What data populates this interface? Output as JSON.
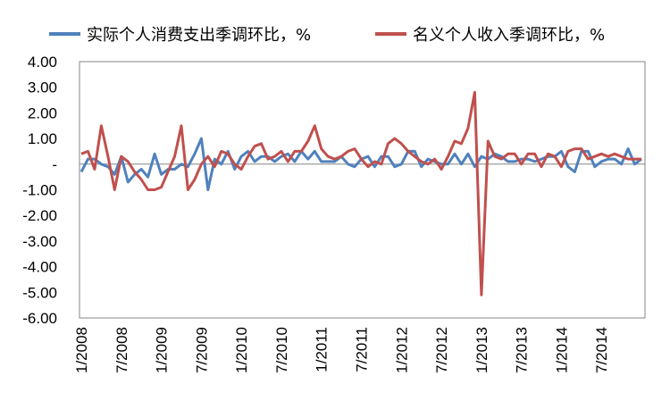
{
  "chart_data": {
    "type": "line",
    "title": "",
    "xlabel": "",
    "ylabel": "",
    "ylim": [
      -6,
      4
    ],
    "y_ticks": [
      "4.00",
      "3.00",
      "2.00",
      "1.00",
      "-",
      "-1.00",
      "-2.00",
      "-3.00",
      "-4.00",
      "-5.00",
      "-6.00"
    ],
    "y_tick_values": [
      4,
      3,
      2,
      1,
      0,
      -1,
      -2,
      -3,
      -4,
      -5,
      -6
    ],
    "x_ticks": [
      "1/2008",
      "7/2008",
      "1/2009",
      "7/2009",
      "1/2010",
      "7/2010",
      "1/2011",
      "7/2011",
      "1/2012",
      "7/2012",
      "1/2013",
      "7/2013",
      "1/2014",
      "7/2014"
    ],
    "x_start": "1/2008",
    "x_end": "9/2014",
    "grid": false,
    "legend_position": "top",
    "series": [
      {
        "name": "实际个人消费支出季调环比，%",
        "color": "#4F81BD",
        "values": [
          -0.3,
          0.2,
          0.2,
          0.0,
          -0.1,
          -0.4,
          0.3,
          -0.7,
          -0.4,
          -0.2,
          -0.5,
          0.4,
          -0.4,
          -0.2,
          -0.2,
          0.0,
          -0.1,
          0.4,
          1.0,
          -1.0,
          0.2,
          0.0,
          0.5,
          -0.2,
          0.3,
          0.5,
          0.1,
          0.3,
          0.3,
          0.1,
          0.3,
          0.4,
          0.1,
          0.5,
          0.2,
          0.5,
          0.1,
          0.1,
          0.1,
          0.3,
          0.0,
          -0.1,
          0.2,
          0.3,
          -0.1,
          0.3,
          0.3,
          -0.1,
          0.0,
          0.5,
          0.5,
          -0.1,
          0.2,
          0.1,
          0.0,
          0.0,
          0.4,
          0.0,
          0.4,
          -0.1,
          0.3,
          0.2,
          0.4,
          0.3,
          0.1,
          0.1,
          0.2,
          0.2,
          0.1,
          0.2,
          0.3,
          0.3,
          0.5,
          -0.1,
          -0.3,
          0.5,
          0.5,
          -0.1,
          0.1,
          0.2,
          0.2,
          0.0,
          0.6,
          0.0,
          0.2
        ]
      },
      {
        "name": "名义个人收入季调环比，%",
        "color": "#C0504D",
        "values": [
          0.4,
          0.5,
          -0.2,
          1.5,
          0.3,
          -1.0,
          0.3,
          0.1,
          -0.3,
          -0.6,
          -1.0,
          -1.0,
          -0.9,
          -0.3,
          0.3,
          1.5,
          -1.0,
          -0.6,
          0.0,
          0.3,
          -0.1,
          0.5,
          0.4,
          0.0,
          -0.2,
          0.3,
          0.7,
          0.8,
          0.2,
          0.3,
          0.5,
          0.1,
          0.5,
          0.5,
          0.9,
          1.5,
          0.6,
          0.3,
          0.2,
          0.3,
          0.5,
          0.6,
          0.2,
          -0.1,
          0.1,
          0.0,
          0.8,
          1.0,
          0.8,
          0.5,
          0.3,
          0.1,
          0.0,
          0.2,
          -0.2,
          0.3,
          0.9,
          0.8,
          1.4,
          2.8,
          -5.1,
          0.9,
          0.3,
          0.2,
          0.4,
          0.4,
          0.0,
          0.4,
          0.4,
          -0.1,
          0.4,
          0.3,
          -0.1,
          0.5,
          0.6,
          0.6,
          0.2,
          0.3,
          0.4,
          0.3,
          0.4,
          0.3,
          0.2,
          0.2,
          0.2
        ]
      }
    ]
  }
}
